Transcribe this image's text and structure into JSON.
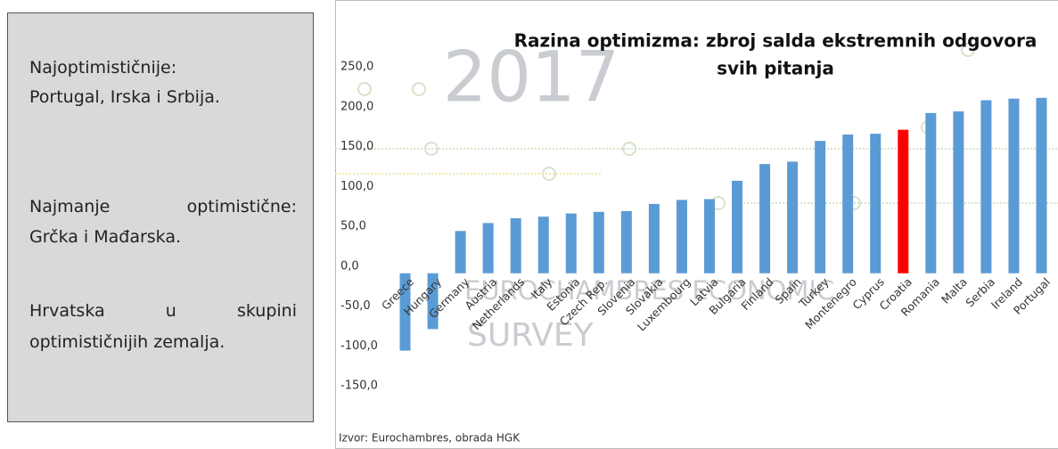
{
  "text_box": {
    "paragraphs": [
      [
        "Najoptimističnije:",
        "Portugal, Irska i Srbija."
      ],
      [
        "Najmanje optimistične:",
        "Grčka i Mađarska."
      ],
      [
        "Hrvatska u skupini",
        "optimističnijih zemalja."
      ]
    ]
  },
  "chart_data": {
    "type": "bar",
    "title": [
      "Razina optimizma: zbroj salda ekstremnih odgovora",
      "svih pitanja"
    ],
    "watermark": [
      "2017",
      "EUROCHAMBRES ECONOMIC",
      "SURVEY"
    ],
    "source": "Izvor: Eurochambres, obrada HGK",
    "categories": [
      "Greece",
      "Hungary",
      "Germany",
      "Austria",
      "Netherlands",
      "Italy",
      "Estonia",
      "Czech Rep.",
      "Slovenia",
      "Slovakia",
      "Luxembourg",
      "Latvia",
      "Bulgaria",
      "Finland",
      "Spain",
      "Turkey",
      "Montenegro",
      "Cyprus",
      "Croatia",
      "Romania",
      "Malta",
      "Serbia",
      "Ireland",
      "Portugal"
    ],
    "values": [
      -97,
      -70,
      53,
      63,
      69,
      71,
      75,
      77,
      78,
      87,
      92,
      93,
      116,
      137,
      140,
      166,
      174,
      175,
      180,
      201,
      203,
      217,
      219,
      220
    ],
    "colors": [
      "#5b9bd5",
      "#5b9bd5",
      "#5b9bd5",
      "#5b9bd5",
      "#5b9bd5",
      "#5b9bd5",
      "#5b9bd5",
      "#5b9bd5",
      "#5b9bd5",
      "#5b9bd5",
      "#5b9bd5",
      "#5b9bd5",
      "#5b9bd5",
      "#5b9bd5",
      "#5b9bd5",
      "#5b9bd5",
      "#5b9bd5",
      "#5b9bd5",
      "#ff0000",
      "#5b9bd5",
      "#5b9bd5",
      "#5b9bd5",
      "#5b9bd5",
      "#5b9bd5"
    ],
    "ylim": [
      -150,
      250
    ],
    "yticks": [
      {
        "value": -150,
        "label": "-150,0"
      },
      {
        "value": -100,
        "label": "-100,0"
      },
      {
        "value": -50,
        "label": "-50,0"
      },
      {
        "value": 0,
        "label": "0,0"
      },
      {
        "value": 50,
        "label": "50,0"
      },
      {
        "value": 100,
        "label": "100,0"
      },
      {
        "value": 150,
        "label": "150,0"
      },
      {
        "value": 200,
        "label": "200,0"
      },
      {
        "value": 250,
        "label": "250,0"
      }
    ],
    "grid": false
  }
}
